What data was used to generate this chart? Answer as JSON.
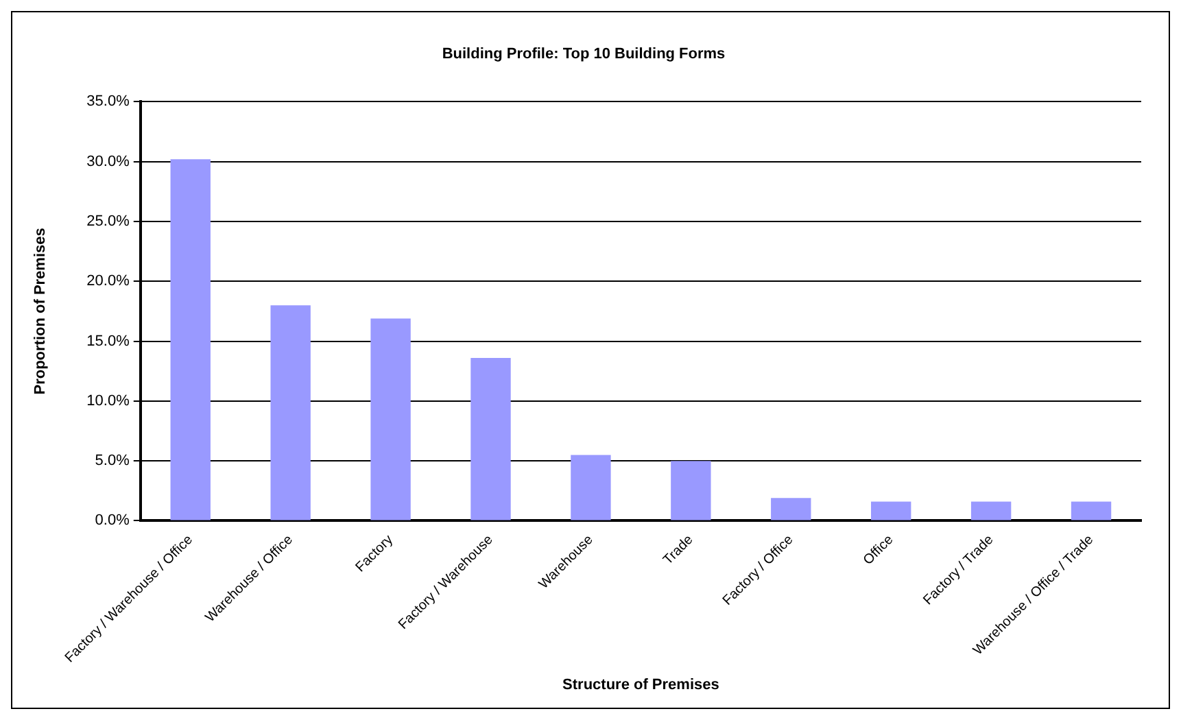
{
  "chart_data": {
    "type": "bar",
    "title": "Building Profile: Top 10 Building Forms",
    "xlabel": "Structure of Premises",
    "ylabel": "Proportion of Premises",
    "categories": [
      "Factory / Warehouse / Office",
      "Warehouse / Office",
      "Factory",
      "Factory / Warehouse",
      "Warehouse",
      "Trade",
      "Factory / Office",
      "Office",
      "Factory / Trade",
      "Warehouse / Office / Trade"
    ],
    "values": [
      30.2,
      18.0,
      16.9,
      13.6,
      5.5,
      5.0,
      1.9,
      1.6,
      1.6,
      1.6
    ],
    "color": "#9999ff",
    "ylim": [
      0,
      35
    ],
    "yticks": [
      {
        "value": 0,
        "label": "0.0%"
      },
      {
        "value": 5,
        "label": "5.0%"
      },
      {
        "value": 10,
        "label": "10.0%"
      },
      {
        "value": 15,
        "label": "15.0%"
      },
      {
        "value": 20,
        "label": "20.0%"
      },
      {
        "value": 25,
        "label": "25.0%"
      },
      {
        "value": 30,
        "label": "30.0%"
      },
      {
        "value": 35,
        "label": "35.0%"
      }
    ],
    "grid": "y",
    "legend": false
  }
}
